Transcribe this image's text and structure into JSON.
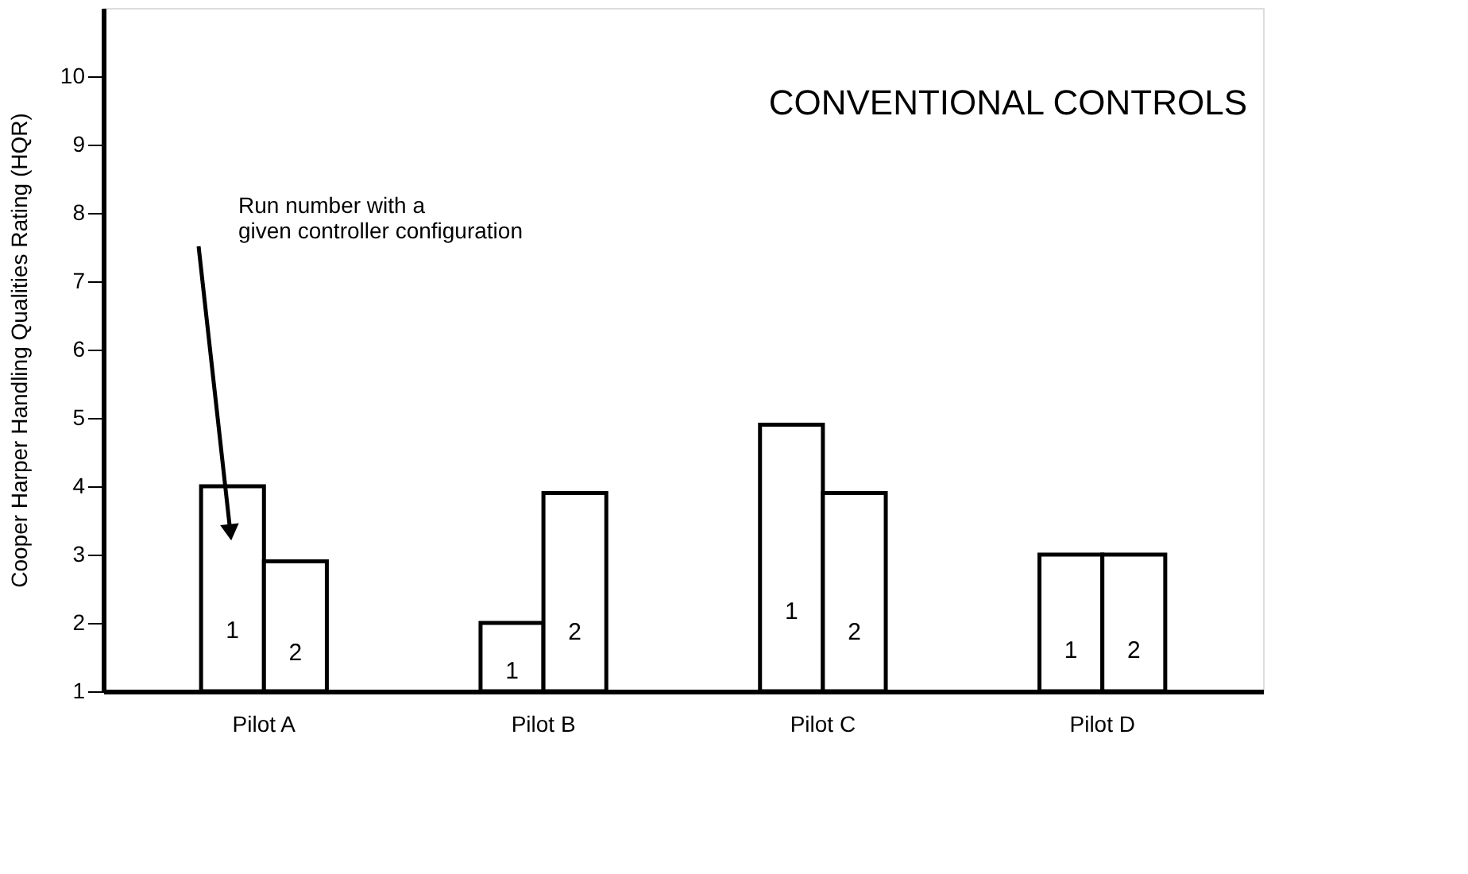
{
  "chart_data": {
    "type": "bar",
    "title": "CONVENTIONAL CONTROLS",
    "ylabel": "Cooper Harper Handling Qualities Rating (HQR)",
    "categories": [
      "Pilot A",
      "Pilot B",
      "Pilot C",
      "Pilot D"
    ],
    "series": [
      {
        "name": "1",
        "color": "#ffffff",
        "values": [
          4.0,
          2.0,
          4.9,
          3.0
        ]
      },
      {
        "name": "2",
        "color": "#ffffff",
        "values": [
          2.9,
          3.9,
          3.9,
          3.0
        ]
      }
    ],
    "ylim": [
      1,
      11
    ],
    "yticks": [
      1,
      2,
      3,
      4,
      5,
      6,
      7,
      8,
      9,
      10
    ],
    "grid": false,
    "legend": false,
    "annotations": [
      "Run number with a given controller configuration"
    ]
  }
}
